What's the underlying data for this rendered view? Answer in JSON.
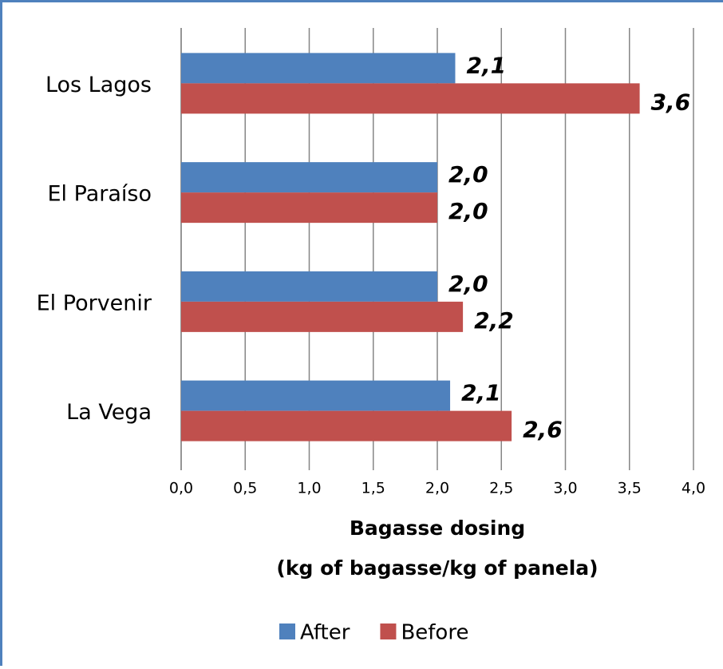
{
  "chart_data": {
    "type": "hbar",
    "categories": [
      "Los Lagos",
      "El Paraíso",
      "El Porvenir",
      "La Vega"
    ],
    "series": [
      {
        "name": "After",
        "color": "#4f81bd",
        "values": [
          2.14,
          2.0,
          2.0,
          2.1
        ],
        "value_labels": [
          "2,1",
          "2,0",
          "2,0",
          "2,1"
        ]
      },
      {
        "name": "Before",
        "color": "#c0504d",
        "values": [
          3.58,
          2.0,
          2.2,
          2.58
        ],
        "value_labels": [
          "3,6",
          "2,0",
          "2,2",
          "2,6"
        ]
      }
    ],
    "xlim": [
      0,
      4
    ],
    "xticks": [
      {
        "value": 0,
        "label": "0,0"
      },
      {
        "value": 0.5,
        "label": "0,5"
      },
      {
        "value": 1,
        "label": "1,0"
      },
      {
        "value": 1.5,
        "label": "1,5"
      },
      {
        "value": 2,
        "label": "2,0"
      },
      {
        "value": 2.5,
        "label": "2,5"
      },
      {
        "value": 3,
        "label": "3,0"
      },
      {
        "value": 3.5,
        "label": "3,5"
      },
      {
        "value": 4,
        "label": "4,0"
      }
    ],
    "xlabel": [
      "Bagasse dosing",
      "(kg of bagasse/kg of panela)"
    ],
    "grid": true,
    "legend": "bottom"
  }
}
